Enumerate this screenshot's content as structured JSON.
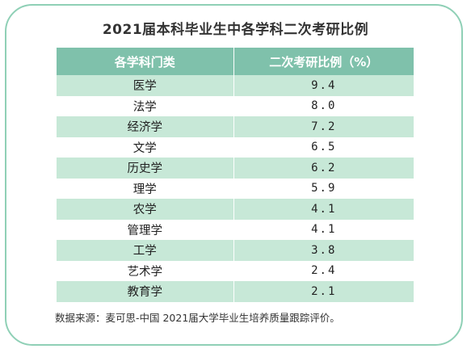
{
  "title": "2021届本科毕业生中各学科二次考研比例",
  "table": {
    "headers": [
      "各学科门类",
      "二次考研比例（%）"
    ],
    "rows": [
      {
        "category": "医学",
        "value": "9.4"
      },
      {
        "category": "法学",
        "value": "8.0"
      },
      {
        "category": "经济学",
        "value": "7.2"
      },
      {
        "category": "文学",
        "value": "6.5"
      },
      {
        "category": "历史学",
        "value": "6.2"
      },
      {
        "category": "理学",
        "value": "5.9"
      },
      {
        "category": "农学",
        "value": "4.1"
      },
      {
        "category": "管理学",
        "value": "4.1"
      },
      {
        "category": "工学",
        "value": "3.8"
      },
      {
        "category": "艺术学",
        "value": "2.4"
      },
      {
        "category": "教育学",
        "value": "2.1"
      }
    ]
  },
  "source": "数据来源：麦可思-中国 2021届大学毕业生培养质量跟踪评价。",
  "colors": {
    "border": "#8fd0b6",
    "header_bg": "#7fc1ab",
    "row_shade": "#c7e8d7"
  }
}
